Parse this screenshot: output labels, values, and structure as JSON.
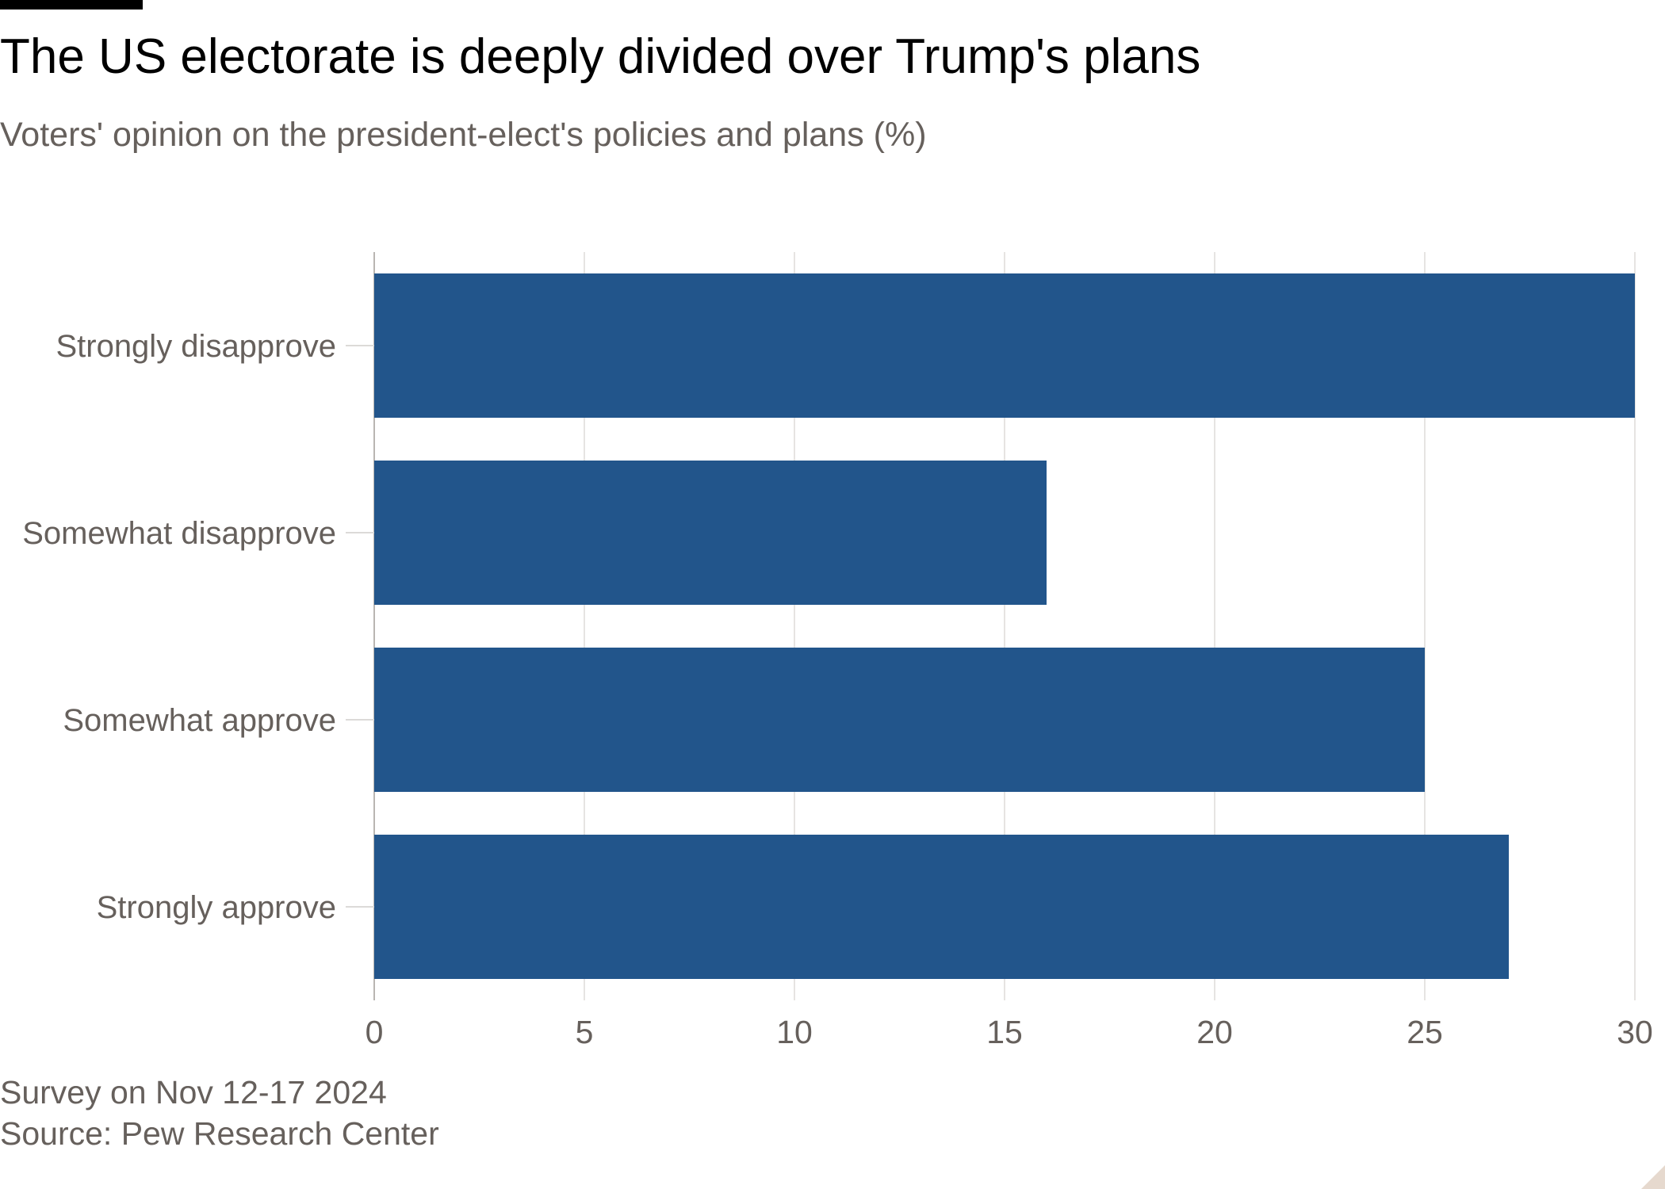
{
  "header": {
    "title": "The US electorate is deeply divided over Trump's plans",
    "subtitle": "Voters' opinion on the president-elect's policies and plans (%)"
  },
  "footer": {
    "note": "Survey on Nov 12-17 2024",
    "source": "Source: Pew Research Center"
  },
  "chart_data": {
    "type": "bar",
    "orientation": "horizontal",
    "categories": [
      "Strongly disapprove",
      "Somewhat disapprove",
      "Somewhat approve",
      "Strongly approve"
    ],
    "values": [
      30,
      16,
      25,
      27
    ],
    "xlim": [
      0,
      30
    ],
    "xticks": [
      0,
      5,
      10,
      15,
      20,
      25,
      30
    ],
    "grid": true,
    "colors": {
      "bar": "#22558b",
      "grid": "#e6e4e2",
      "tick_text": "#66605c"
    }
  }
}
